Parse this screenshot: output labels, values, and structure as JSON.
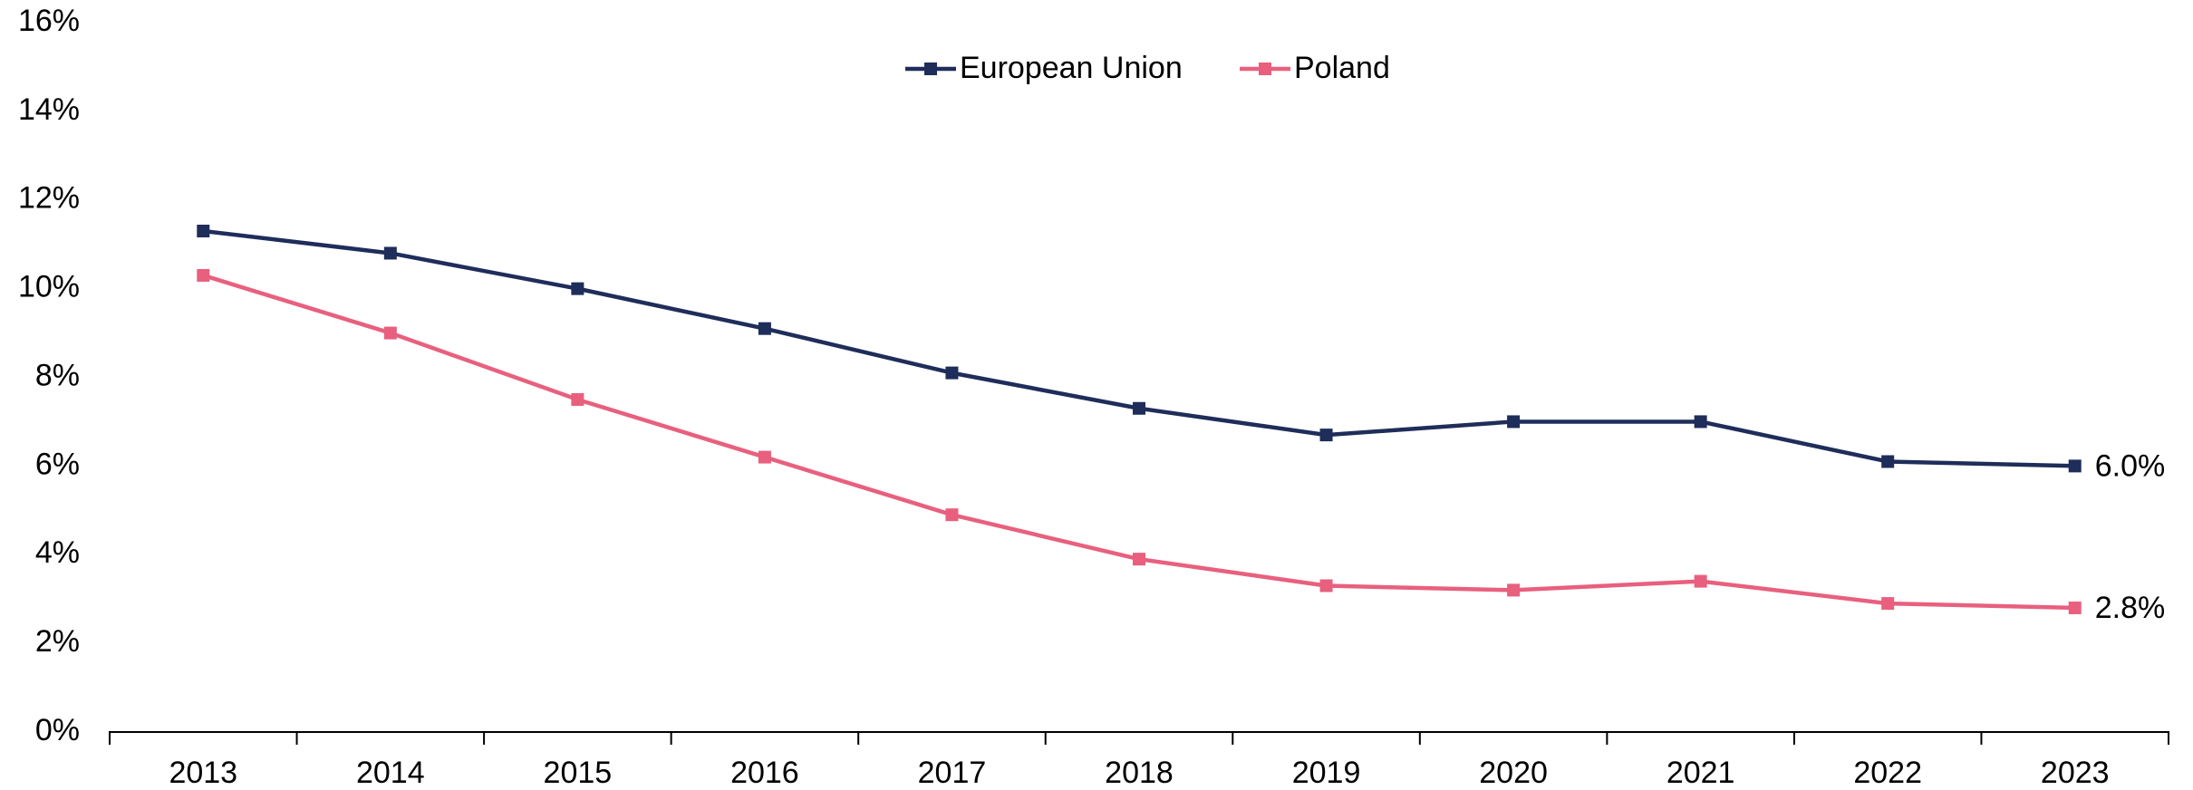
{
  "chart_data": {
    "type": "line",
    "categories": [
      "2013",
      "2014",
      "2015",
      "2016",
      "2017",
      "2018",
      "2019",
      "2020",
      "2021",
      "2022",
      "2023"
    ],
    "series": [
      {
        "name": "European Union",
        "color": "#1f2d5a",
        "values": [
          11.3,
          10.8,
          10.0,
          9.1,
          8.1,
          7.3,
          6.7,
          7.0,
          7.0,
          6.1,
          6.0
        ],
        "value_labels": [
          null,
          null,
          null,
          null,
          null,
          null,
          null,
          null,
          null,
          null,
          "6.0%"
        ]
      },
      {
        "name": "Poland",
        "color": "#e8607e",
        "values": [
          10.3,
          9.0,
          7.5,
          6.2,
          4.9,
          3.9,
          3.3,
          3.2,
          3.4,
          2.9,
          2.8
        ],
        "value_labels": [
          null,
          null,
          null,
          null,
          null,
          null,
          null,
          null,
          null,
          null,
          "2.8%"
        ]
      }
    ],
    "ylim": [
      0,
      16
    ],
    "yticks": [
      {
        "value": 0,
        "label": "0%"
      },
      {
        "value": 2,
        "label": "2%"
      },
      {
        "value": 4,
        "label": "4%"
      },
      {
        "value": 6,
        "label": "6%"
      },
      {
        "value": 8,
        "label": "8%"
      },
      {
        "value": 10,
        "label": "10%"
      },
      {
        "value": 12,
        "label": "12%"
      },
      {
        "value": 14,
        "label": "14%"
      },
      {
        "value": 16,
        "label": "16%"
      }
    ],
    "grid": false,
    "legend": "top"
  }
}
